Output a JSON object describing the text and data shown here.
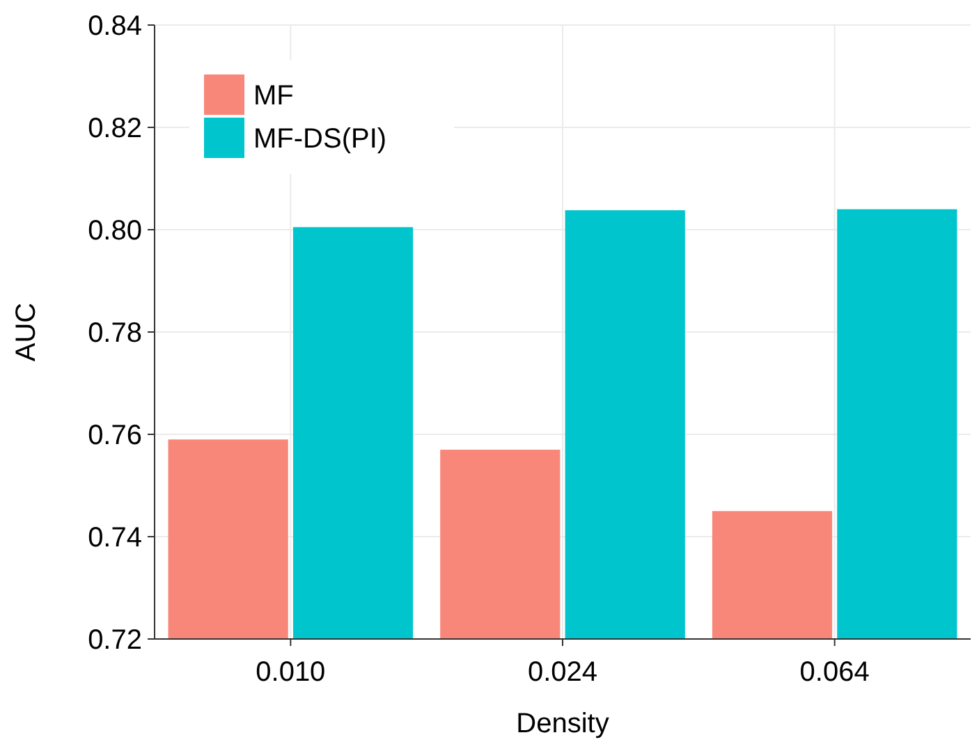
{
  "chart_data": {
    "type": "bar",
    "xlabel": "Density",
    "ylabel": "AUC",
    "categories": [
      "0.010",
      "0.024",
      "0.064"
    ],
    "series": [
      {
        "name": "MF",
        "color": "#f8877a",
        "values": [
          0.759,
          0.757,
          0.745
        ]
      },
      {
        "name": "MF-DS(PI)",
        "color": "#00c5cd",
        "values": [
          0.8005,
          0.8038,
          0.804
        ]
      }
    ],
    "ylim": [
      0.72,
      0.84
    ],
    "yticks": [
      {
        "value": 0.72,
        "label": "0.72"
      },
      {
        "value": 0.74,
        "label": "0.74"
      },
      {
        "value": 0.76,
        "label": "0.76"
      },
      {
        "value": 0.78,
        "label": "0.78"
      },
      {
        "value": 0.8,
        "label": "0.80"
      },
      {
        "value": 0.82,
        "label": "0.82"
      },
      {
        "value": 0.84,
        "label": "0.84"
      }
    ],
    "grid": true,
    "legend": "top left"
  }
}
